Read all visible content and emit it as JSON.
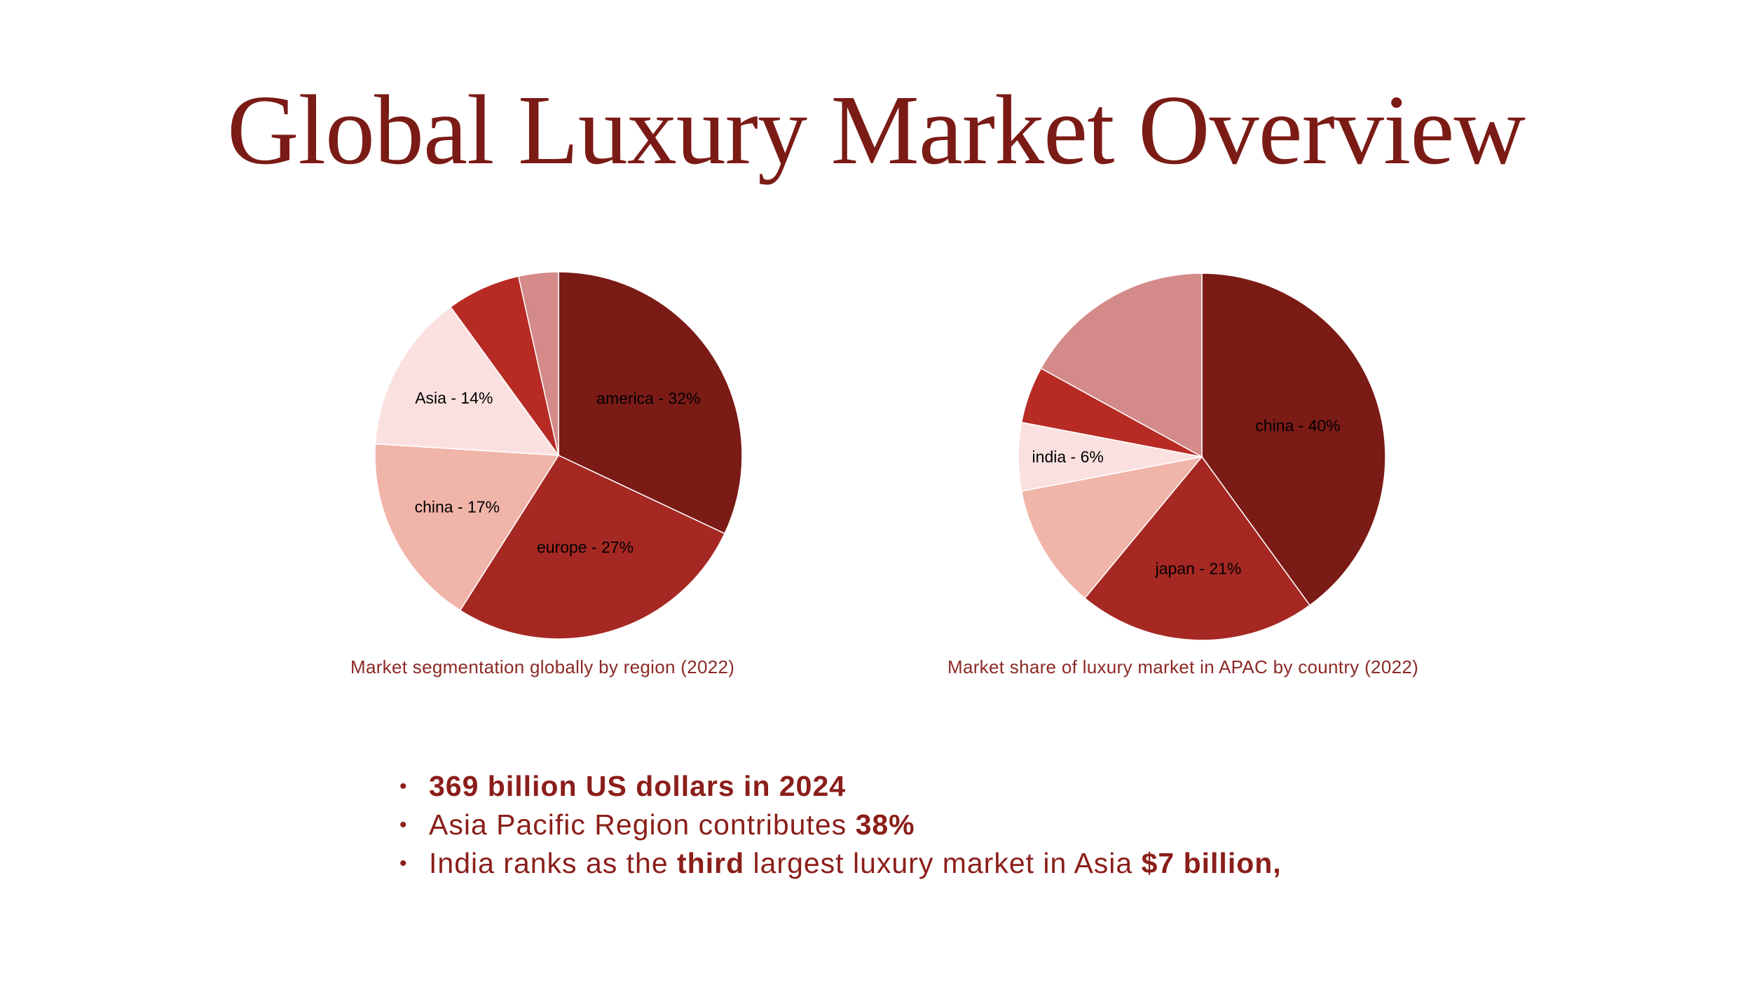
{
  "title": "Global Luxury Market Overview",
  "colors": {
    "title": "#7b1b16",
    "caption": "#8b2a27",
    "bullet_text": "#8b1e1a"
  },
  "chart_data": [
    {
      "type": "pie",
      "caption": "Market segmentation globally by region (2022)",
      "slices": [
        {
          "label": "america - 32%",
          "value": 32,
          "color": "#7b1b16"
        },
        {
          "label": "europe - 27%",
          "value": 27,
          "color": "#a52823"
        },
        {
          "label": "china - 17%",
          "value": 17,
          "color": "#f1b4a9"
        },
        {
          "label": "Asia - 14%",
          "value": 14,
          "color": "#fae1e0"
        },
        {
          "label": "",
          "value": 6.5,
          "color": "#b72b24"
        },
        {
          "label": "",
          "value": 3.5,
          "color": "#d48a89"
        }
      ]
    },
    {
      "type": "pie",
      "caption": "Market share of luxury market in APAC by country (2022)",
      "slices": [
        {
          "label": "china - 40%",
          "value": 40,
          "color": "#7b1b16"
        },
        {
          "label": "japan - 21%",
          "value": 21,
          "color": "#a52823"
        },
        {
          "label": "",
          "value": 11,
          "color": "#f1b4a9"
        },
        {
          "label": "india - 6%",
          "value": 6,
          "color": "#fae1e0"
        },
        {
          "label": "",
          "value": 5,
          "color": "#b72b24"
        },
        {
          "label": "",
          "value": 17,
          "color": "#d48a89"
        }
      ]
    }
  ],
  "bullets": [
    {
      "parts": [
        {
          "text": "369 billion US dollars in 2024",
          "bold": true
        }
      ]
    },
    {
      "parts": [
        {
          "text": "Asia Pacific Region contributes ",
          "bold": false
        },
        {
          "text": "38%",
          "bold": true
        }
      ]
    },
    {
      "parts": [
        {
          "text": "India ranks as the ",
          "bold": false
        },
        {
          "text": "third",
          "bold": true
        },
        {
          "text": " largest luxury market in Asia ",
          "bold": false
        },
        {
          "text": "$7 billion,",
          "bold": true
        }
      ]
    }
  ]
}
